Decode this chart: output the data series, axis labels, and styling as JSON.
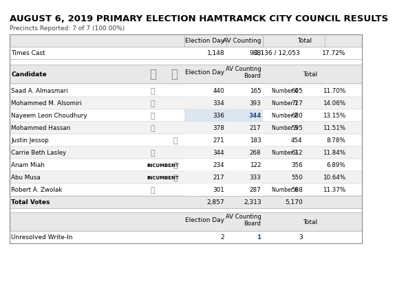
{
  "title": "AUGUST 6, 2019 PRIMARY ELECTION HAMTRAMCK CITY COUNCIL RESULTS",
  "subtitle": "Precincts Reported: 7 of 7 (100.00%)",
  "times_cast": {
    "election_day": "1,148",
    "av_counting": "988",
    "total": "2,136 / 12,053",
    "pct": "17.72%"
  },
  "header_row": [
    "Candidate",
    "",
    "",
    "Election Day",
    "AV Counting\nBoard",
    "",
    "Total",
    ""
  ],
  "candidates": [
    {
      "name": "Saad A. Almasmari",
      "thumb_up": true,
      "thumb_down": false,
      "incumbent": false,
      "ed": "440",
      "av": "165",
      "rank_label": "Number 4",
      "total": "605",
      "pct": "11.70%"
    },
    {
      "name": "Mohammed M. Alsomiri",
      "thumb_up": true,
      "thumb_down": false,
      "incumbent": false,
      "ed": "334",
      "av": "393",
      "rank_label": "Number 1",
      "total": "727",
      "pct": "14.06%"
    },
    {
      "name": "Nayeem Leon Choudhury",
      "thumb_up": true,
      "thumb_down": false,
      "incumbent": false,
      "ed": "336",
      "av": "344",
      "rank_label": "Number 2",
      "total": "680",
      "pct": "13.15%"
    },
    {
      "name": "Mohammed Hassan",
      "thumb_up": true,
      "thumb_down": false,
      "incumbent": false,
      "ed": "378",
      "av": "217",
      "rank_label": "Number 5",
      "total": "595",
      "pct": "11.51%"
    },
    {
      "name": "Justin Jessop",
      "thumb_up": false,
      "thumb_down": true,
      "incumbent": false,
      "ed": "271",
      "av": "183",
      "rank_label": "",
      "total": "454",
      "pct": "8.78%"
    },
    {
      "name": "Carrie Beth Lasley",
      "thumb_up": true,
      "thumb_down": false,
      "incumbent": false,
      "ed": "344",
      "av": "268",
      "rank_label": "Number 3",
      "total": "612",
      "pct": "11.84%"
    },
    {
      "name": "Anam Miah",
      "thumb_up": false,
      "thumb_down": true,
      "incumbent": true,
      "ed": "234",
      "av": "122",
      "rank_label": "",
      "total": "356",
      "pct": "6.89%"
    },
    {
      "name": "Abu Musa",
      "thumb_up": false,
      "thumb_down": true,
      "incumbent": true,
      "ed": "217",
      "av": "333",
      "rank_label": "",
      "total": "550",
      "pct": "10.64%"
    },
    {
      "name": "Robert A. Zwolak",
      "thumb_up": true,
      "thumb_down": false,
      "incumbent": false,
      "ed": "301",
      "av": "287",
      "rank_label": "Number 6",
      "total": "588",
      "pct": "11.37%"
    }
  ],
  "total_votes": {
    "ed": "2,857",
    "av": "2,313",
    "total": "5,170"
  },
  "write_in": {
    "ed": "2",
    "av": "1",
    "total": "3"
  },
  "col_colors": {
    "ed_header_bg": "#dce6f1",
    "av_header_bg": "#dce6f1",
    "total_header_bg": "#dce6f1",
    "row_bg_even": "#ffffff",
    "row_bg_odd": "#ffffff",
    "header_bg": "#e0e0e0",
    "times_cast_bg": "#ffffff",
    "ed_data_bg": "#ffffff",
    "av_data_highlight": "#dce6f1",
    "total_data_bg": "#ffffff"
  },
  "title_color": "#000000",
  "subtitle_color": "#404040",
  "border_color": "#aaaaaa",
  "text_color": "#000000",
  "blue_text": "#1f4e79"
}
